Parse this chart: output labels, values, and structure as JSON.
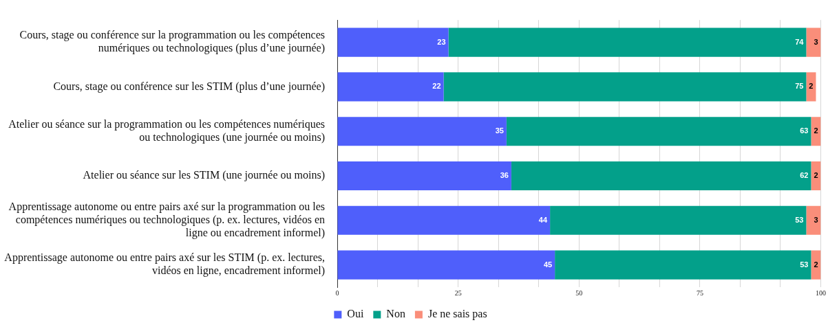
{
  "chart_data": {
    "type": "bar",
    "orientation": "horizontal",
    "stacked": true,
    "data_labels": true,
    "grid": "x",
    "legend": "bottom",
    "categories": [
      "Cours, stage ou conférence sur la programmation ou les compétences numériques ou technologiques (plus d’une journée)",
      "Cours, stage ou conférence sur les STIM (plus d’une journée)",
      "Atelier ou séance sur la programmation ou les compétences numériques ou technologiques (une journée ou moins)",
      "Atelier ou séance sur les STIM (une journée ou moins)",
      "Apprentissage autonome ou entre pairs axé sur la programmation ou les compétences numériques ou technologiques (p. ex. lectures, vidéos en ligne ou encadrement informel)",
      "Apprentissage autonome ou entre pairs axé sur les STIM (p. ex. lectures, vidéos en ligne, encadrement informel)"
    ],
    "series": [
      {
        "name": "Oui",
        "color": "#4f5ffb",
        "values": [
          23,
          22,
          35,
          36,
          44,
          45
        ]
      },
      {
        "name": "Non",
        "color": "#03a08a",
        "values": [
          74,
          75,
          63,
          62,
          53,
          53
        ]
      },
      {
        "name": "Je ne sais pas",
        "color": "#fa8e7a",
        "values": [
          3,
          2,
          2,
          2,
          3,
          2
        ]
      }
    ],
    "xlim": [
      0,
      100
    ],
    "xticks": [
      0,
      {
        "value": 8.333,
        "label": null
      },
      {
        "value": 16.667,
        "label": null
      },
      25,
      {
        "value": 33.333,
        "label": null
      },
      {
        "value": 41.667,
        "label": null
      },
      50,
      {
        "value": 58.333,
        "label": null
      },
      {
        "value": 66.667,
        "label": null
      },
      75,
      {
        "value": 83.333,
        "label": null
      },
      {
        "value": 91.667,
        "label": null
      },
      100
    ]
  }
}
